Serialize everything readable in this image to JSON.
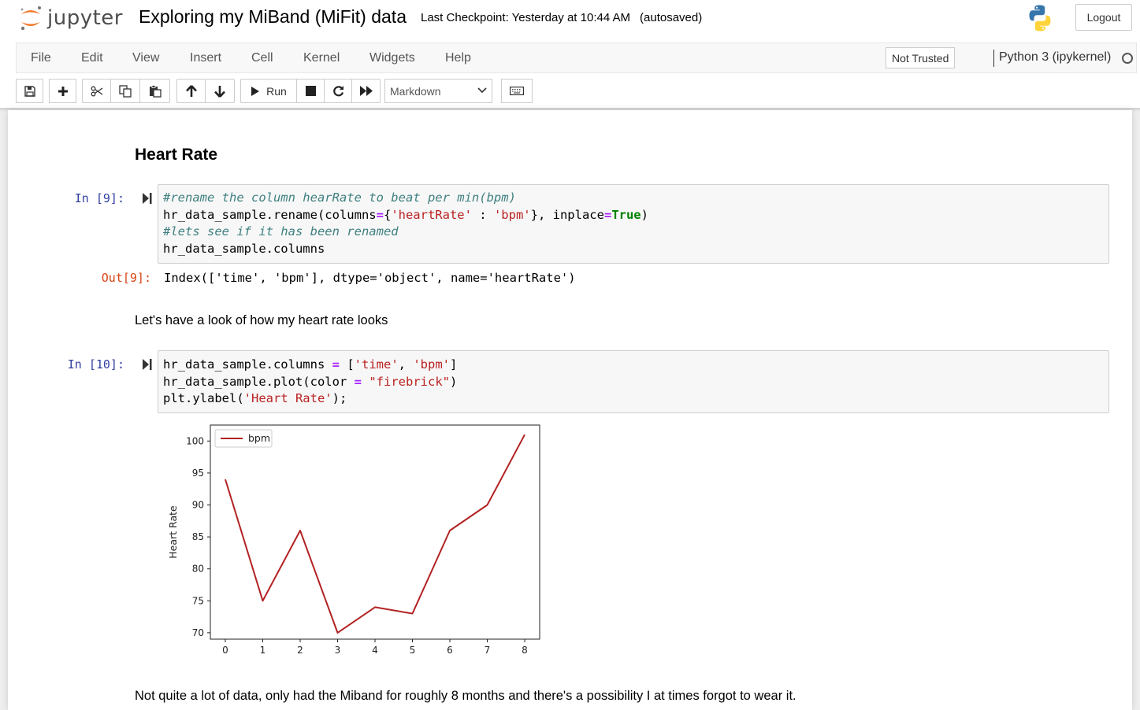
{
  "header": {
    "logo_text": "jupyter",
    "notebook_title": "Exploring my MiBand (MiFit) data",
    "checkpoint": "Last Checkpoint: Yesterday at 10:44 AM",
    "autosave": "(autosaved)",
    "logout_label": "Logout"
  },
  "menubar": {
    "items": [
      "File",
      "Edit",
      "View",
      "Insert",
      "Cell",
      "Kernel",
      "Widgets",
      "Help"
    ],
    "trust_label": "Not Trusted",
    "kernel_label": "Python 3 (ipykernel)"
  },
  "toolbar": {
    "run_label": "Run",
    "cell_type": "Markdown",
    "icons": [
      "save-icon",
      "plus-icon",
      "scissors-icon",
      "copy-icon",
      "paste-icon",
      "arrow-up-icon",
      "arrow-down-icon",
      "run-icon",
      "stop-icon",
      "restart-icon",
      "fast-forward-icon",
      "keyboard-icon"
    ]
  },
  "cells": {
    "heading": "Heart Rate",
    "cell9": {
      "in_prompt": "In [9]:",
      "out_prompt": "Out[9]:",
      "output": "Index(['time', 'bpm'], dtype='object', name='heartRate')"
    },
    "md1": "Let's have a look of how my heart rate looks",
    "cell10": {
      "in_prompt": "In [10]:"
    },
    "md2": "Not quite a lot of data, only had the Miband for roughly 8 months and there's a possibility I at times forgot to wear it."
  },
  "chart_data": {
    "type": "line",
    "x": [
      0,
      1,
      2,
      3,
      4,
      5,
      6,
      7,
      8
    ],
    "series": [
      {
        "name": "bpm",
        "color": "#b22222",
        "values": [
          94,
          75,
          86,
          70,
          74,
          73,
          86,
          90,
          101
        ]
      }
    ],
    "xlabel": "",
    "ylabel": "Heart Rate",
    "xlim": [
      -0.4,
      8.4
    ],
    "ylim": [
      69,
      102.5
    ],
    "xticks": [
      0,
      1,
      2,
      3,
      4,
      5,
      6,
      7,
      8
    ],
    "yticks": [
      70,
      75,
      80,
      85,
      90,
      95,
      100
    ],
    "legend": "upper-left",
    "grid": false
  }
}
